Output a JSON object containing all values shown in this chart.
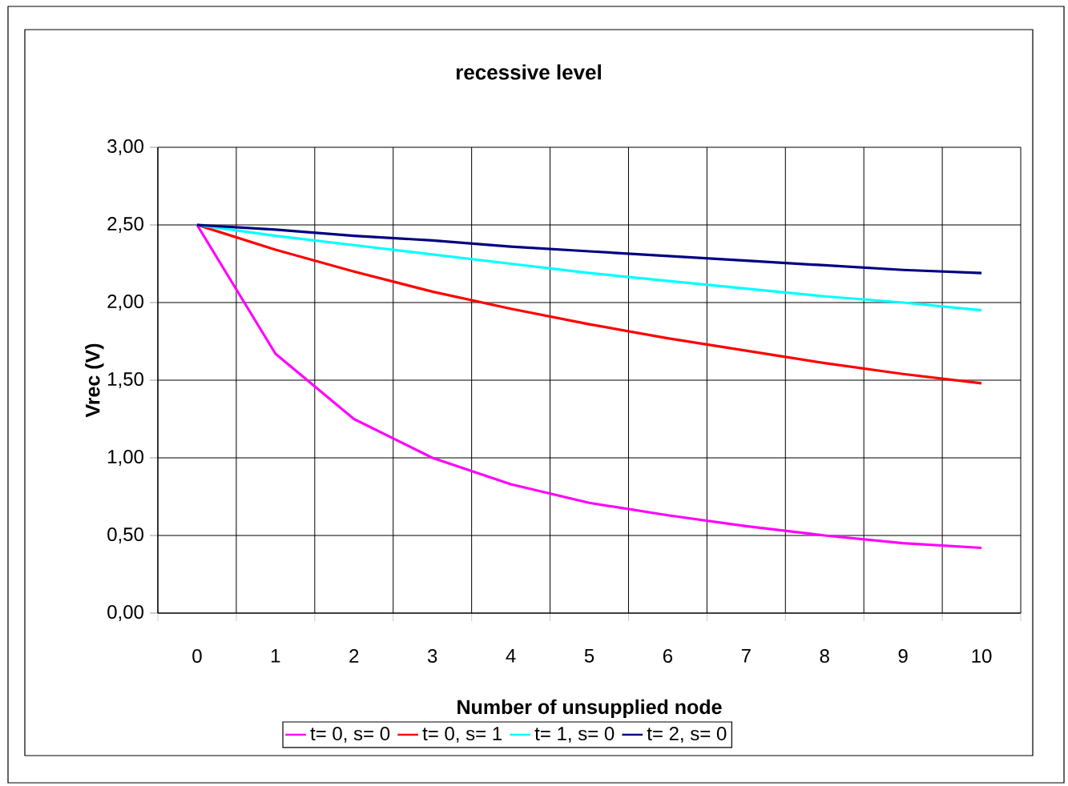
{
  "chart_data": {
    "type": "line",
    "title": "recessive level",
    "xlabel": "Number of unsupplied node",
    "ylabel": "Vrec (V)",
    "categories": [
      "0",
      "1",
      "2",
      "3",
      "4",
      "5",
      "6",
      "7",
      "8",
      "9",
      "10"
    ],
    "series": [
      {
        "name": "t= 0, s= 0",
        "color": "#ff00ff",
        "values": [
          2.5,
          1.67,
          1.25,
          1.0,
          0.83,
          0.71,
          0.63,
          0.56,
          0.5,
          0.45,
          0.42
        ]
      },
      {
        "name": "t= 0, s= 1",
        "color": "#ff0000",
        "values": [
          2.5,
          2.34,
          2.2,
          2.07,
          1.96,
          1.86,
          1.77,
          1.69,
          1.61,
          1.54,
          1.48
        ]
      },
      {
        "name": "t= 1, s= 0",
        "color": "#00ffff",
        "values": [
          2.5,
          2.43,
          2.37,
          2.31,
          2.25,
          2.19,
          2.14,
          2.09,
          2.04,
          2.0,
          1.95
        ]
      },
      {
        "name": "t= 2, s= 0",
        "color": "#000080",
        "values": [
          2.5,
          2.47,
          2.43,
          2.4,
          2.36,
          2.33,
          2.3,
          2.27,
          2.24,
          2.21,
          2.19
        ]
      }
    ],
    "ylim": [
      0,
      3
    ],
    "yticks": [
      {
        "value": 0,
        "label": "0,00"
      },
      {
        "value": 0.5,
        "label": "0,50"
      },
      {
        "value": 1,
        "label": "1,00"
      },
      {
        "value": 1.5,
        "label": "1,50"
      },
      {
        "value": 2,
        "label": "2,00"
      },
      {
        "value": 2.5,
        "label": "2,50"
      },
      {
        "value": 3,
        "label": "3,00"
      }
    ],
    "grid": true,
    "legend": "bottom",
    "marker": "none",
    "line_style": "solid"
  }
}
